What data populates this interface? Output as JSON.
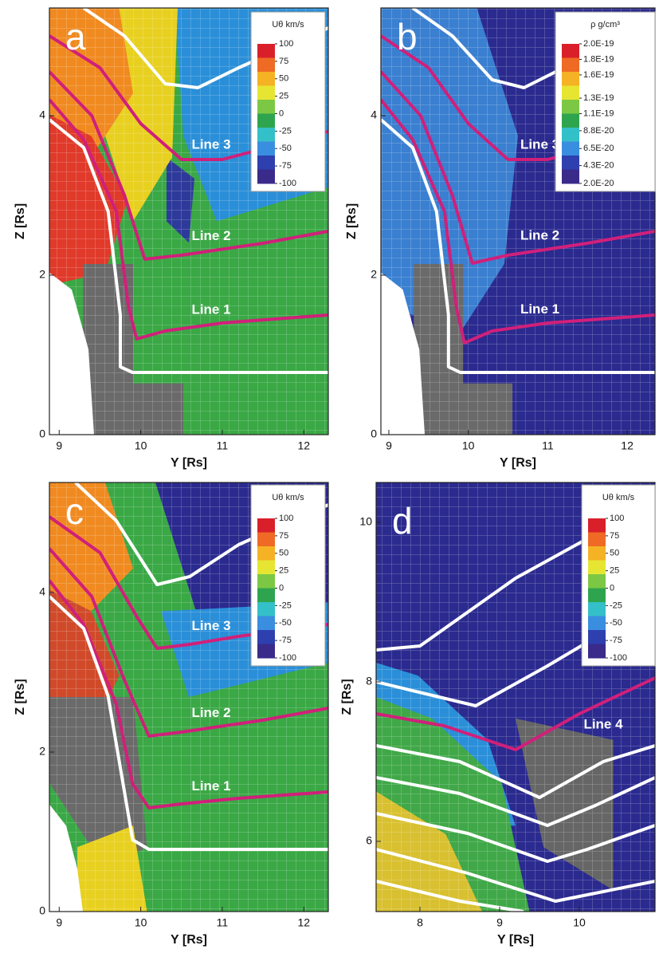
{
  "chart_data": [
    {
      "type": "contour",
      "panel_label": "a",
      "xlabel": "Y [Rs]",
      "ylabel": "Z [Rs]",
      "xlim": [
        8.88,
        12.3
      ],
      "ylim": [
        0,
        5.35
      ],
      "xticks": [
        9,
        10,
        11,
        12
      ],
      "yticks": [
        0,
        2,
        4
      ],
      "colorbar": {
        "title": "Uθ km/s",
        "lim": [
          -100,
          100
        ],
        "ticks": [
          100,
          75,
          50,
          25,
          0,
          -25,
          -50,
          -75,
          -100
        ]
      },
      "series": [
        {
          "color": "#ffffff",
          "x": [
            9.3,
            9.8,
            10.3,
            10.7,
            11.2,
            12.3
          ],
          "values": [
            5.35,
            5.0,
            4.4,
            4.35,
            4.6,
            5.1
          ]
        },
        {
          "name": "Line 3",
          "color": "#d0207a",
          "x": [
            8.88,
            9.5,
            10.0,
            10.5,
            11.0,
            12.3
          ],
          "values": [
            5.0,
            4.6,
            3.9,
            3.45,
            3.45,
            3.8
          ]
        },
        {
          "name": "Line 2",
          "color": "#d0207a",
          "x": [
            8.88,
            9.4,
            9.8,
            10.05,
            10.5,
            11.5,
            12.3
          ],
          "values": [
            4.55,
            4.0,
            3.0,
            2.2,
            2.25,
            2.4,
            2.55
          ]
        },
        {
          "name": "Line 1",
          "color": "#d0207a",
          "x": [
            8.88,
            9.3,
            9.7,
            9.85,
            9.95,
            10.3,
            11.0,
            12.3
          ],
          "values": [
            4.2,
            3.7,
            2.8,
            1.6,
            1.2,
            1.3,
            1.4,
            1.5
          ]
        },
        {
          "color": "#ffffff",
          "x": [
            8.88,
            9.3,
            9.6,
            9.75,
            9.75,
            9.9,
            12.3
          ],
          "values": [
            3.95,
            3.6,
            2.8,
            1.5,
            0.85,
            0.78,
            0.78
          ]
        }
      ]
    },
    {
      "type": "contour",
      "panel_label": "b",
      "xlabel": "Y [Rs]",
      "ylabel": "Z [Rs]",
      "xlim": [
        8.9,
        12.35
      ],
      "ylim": [
        0,
        5.35
      ],
      "xticks": [
        9,
        10,
        11,
        12
      ],
      "yticks": [
        0,
        2,
        4
      ],
      "colorbar": {
        "title": "ρ g/cm³",
        "lim": [
          2e-20,
          2e-19
        ],
        "ticks": [
          {
            "value": 2e-19,
            "label": "2.0E-19"
          },
          {
            "value": 1.8e-19,
            "label": "1.8E-19"
          },
          {
            "value": 1.6e-19,
            "label": "1.6E-19"
          },
          {
            "value": 1.3e-19,
            "label": "1.3E-19"
          },
          {
            "value": 1.1e-19,
            "label": "1.1E-19"
          },
          {
            "value": 8.8e-20,
            "label": "8.8E-20"
          },
          {
            "value": 6.5e-20,
            "label": "6.5E-20"
          },
          {
            "value": 4.3e-20,
            "label": "4.3E-20"
          },
          {
            "value": 2e-20,
            "label": "2.0E-20"
          }
        ]
      },
      "series": [
        {
          "color": "#ffffff",
          "x": [
            9.3,
            9.8,
            10.3,
            10.7,
            11.2,
            12.35
          ],
          "values": [
            5.35,
            5.0,
            4.45,
            4.35,
            4.6,
            5.1
          ]
        },
        {
          "name": "Line 3",
          "color": "#d0207a",
          "x": [
            8.9,
            9.5,
            10.0,
            10.5,
            11.0,
            12.35
          ],
          "values": [
            5.0,
            4.6,
            3.9,
            3.45,
            3.45,
            3.8
          ]
        },
        {
          "name": "Line 2",
          "color": "#d0207a",
          "x": [
            8.9,
            9.4,
            9.8,
            10.05,
            10.5,
            11.5,
            12.35
          ],
          "values": [
            4.55,
            4.0,
            3.0,
            2.15,
            2.25,
            2.4,
            2.55
          ]
        },
        {
          "name": "Line 1",
          "color": "#d0207a",
          "x": [
            8.9,
            9.3,
            9.7,
            9.85,
            9.95,
            10.3,
            11.0,
            12.35
          ],
          "values": [
            4.2,
            3.7,
            2.8,
            1.6,
            1.15,
            1.3,
            1.4,
            1.5
          ]
        },
        {
          "color": "#ffffff",
          "x": [
            8.9,
            9.3,
            9.6,
            9.75,
            9.75,
            9.9,
            12.35
          ],
          "values": [
            3.95,
            3.6,
            2.8,
            1.5,
            0.85,
            0.78,
            0.78
          ]
        }
      ]
    },
    {
      "type": "contour",
      "panel_label": "c",
      "xlabel": "Y [Rs]",
      "ylabel": "Z [Rs]",
      "xlim": [
        8.88,
        12.3
      ],
      "ylim": [
        0,
        5.38
      ],
      "xticks": [
        9,
        10,
        11,
        12
      ],
      "yticks": [
        0,
        2,
        4
      ],
      "colorbar": {
        "title": "Uθ km/s",
        "lim": [
          -100,
          100
        ],
        "ticks": [
          100,
          75,
          50,
          25,
          0,
          -25,
          -50,
          -75,
          -100
        ]
      },
      "series": [
        {
          "color": "#ffffff",
          "x": [
            9.2,
            9.7,
            10.2,
            10.6,
            11.2,
            12.3
          ],
          "values": [
            5.38,
            4.9,
            4.1,
            4.2,
            4.6,
            5.1
          ]
        },
        {
          "name": "Line 3",
          "color": "#d0207a",
          "x": [
            8.88,
            9.5,
            9.95,
            10.2,
            10.6,
            11.2,
            12.3
          ],
          "values": [
            4.95,
            4.5,
            3.7,
            3.3,
            3.35,
            3.45,
            3.6
          ]
        },
        {
          "name": "Line 2",
          "color": "#d0207a",
          "x": [
            8.88,
            9.4,
            9.8,
            10.1,
            10.5,
            11.5,
            12.3
          ],
          "values": [
            4.55,
            3.95,
            2.9,
            2.2,
            2.25,
            2.4,
            2.55
          ]
        },
        {
          "name": "Line 1",
          "color": "#d0207a",
          "x": [
            8.88,
            9.3,
            9.7,
            9.9,
            10.1,
            10.5,
            11.2,
            12.3
          ],
          "values": [
            4.15,
            3.6,
            2.6,
            1.6,
            1.3,
            1.35,
            1.42,
            1.5
          ]
        },
        {
          "color": "#ffffff",
          "x": [
            8.88,
            9.3,
            9.6,
            9.8,
            9.9,
            10.1,
            12.3
          ],
          "values": [
            3.95,
            3.55,
            2.7,
            1.5,
            0.9,
            0.78,
            0.78
          ]
        }
      ]
    },
    {
      "type": "contour",
      "panel_label": "d",
      "xlabel": "Y [Rs]",
      "ylabel": "Z [Rs]",
      "xlim": [
        7.45,
        10.95
      ],
      "ylim": [
        5.12,
        10.5
      ],
      "xticks": [
        8,
        9,
        10
      ],
      "yticks": [
        6,
        8,
        10
      ],
      "colorbar": {
        "title": "Uθ km/s",
        "lim": [
          -100,
          100
        ],
        "ticks": [
          100,
          75,
          50,
          25,
          0,
          -25,
          -50,
          -75,
          -100
        ]
      },
      "series": [
        {
          "color": "#ffffff",
          "x": [
            7.45,
            8.0,
            9.2,
            10.2
          ],
          "values": [
            8.4,
            8.45,
            9.3,
            9.85
          ]
        },
        {
          "color": "#ffffff",
          "x": [
            7.45,
            8.7,
            9.6,
            10.95
          ],
          "values": [
            8.0,
            7.7,
            8.2,
            9.0
          ]
        },
        {
          "name": "Line 4",
          "color": "#d0207a",
          "x": [
            7.45,
            8.3,
            9.2,
            10.0,
            10.95
          ],
          "values": [
            7.6,
            7.45,
            7.15,
            7.6,
            8.05
          ]
        },
        {
          "color": "#ffffff",
          "x": [
            7.45,
            8.5,
            9.5,
            10.3,
            10.95
          ],
          "values": [
            7.2,
            7.0,
            6.55,
            7.0,
            7.2
          ]
        },
        {
          "color": "#ffffff",
          "x": [
            7.45,
            8.5,
            9.6,
            10.2,
            10.95
          ],
          "values": [
            6.8,
            6.6,
            6.2,
            6.45,
            6.8
          ]
        },
        {
          "color": "#ffffff",
          "x": [
            7.45,
            8.6,
            9.6,
            10.1,
            10.95
          ],
          "values": [
            6.35,
            6.1,
            5.75,
            5.9,
            6.2
          ]
        },
        {
          "color": "#ffffff",
          "x": [
            7.45,
            8.6,
            9.7,
            10.95
          ],
          "values": [
            5.9,
            5.6,
            5.25,
            5.5
          ]
        },
        {
          "color": "#ffffff",
          "x": [
            7.45,
            8.5,
            9.3
          ],
          "values": [
            5.5,
            5.25,
            5.12
          ]
        }
      ]
    }
  ]
}
